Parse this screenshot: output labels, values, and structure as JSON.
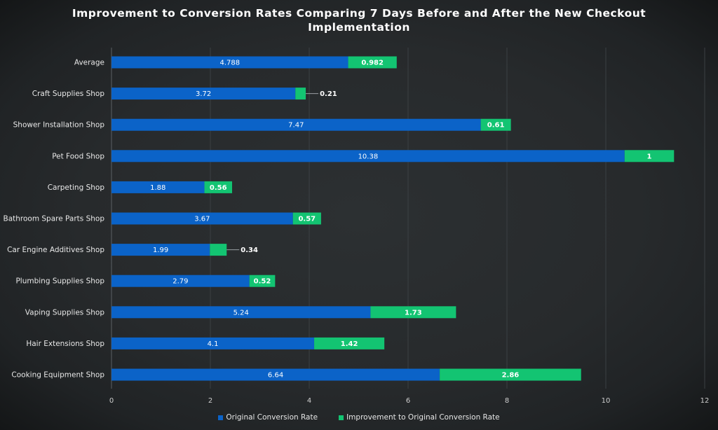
{
  "chart_data": {
    "type": "bar",
    "orientation": "horizontal",
    "stacked": true,
    "title": "Improvement to Conversion Rates Comparing 7 Days Before and After the New Checkout Implementation",
    "categories": [
      "Average",
      "Craft Supplies Shop",
      "Shower Installation Shop",
      "Pet Food Shop",
      "Carpeting Shop",
      "Bathroom Spare Parts Shop",
      "Car Engine Additives Shop",
      "Plumbing Supplies Shop",
      "Vaping Supplies Shop",
      "Hair Extensions Shop",
      "Cooking Equipment Shop"
    ],
    "series": [
      {
        "name": "Original Conversion Rate",
        "color": "#0b63c8",
        "values": [
          4.788,
          3.72,
          7.47,
          10.38,
          1.88,
          3.67,
          1.99,
          2.79,
          5.24,
          4.1,
          6.64
        ],
        "labels": [
          "4.788",
          "3.72",
          "7.47",
          "10.38",
          "1.88",
          "3.67",
          "1.99",
          "2.79",
          "5.24",
          "4.1",
          "6.64"
        ]
      },
      {
        "name": "Improvement to Original Conversion Rate",
        "color": "#13c472",
        "values": [
          0.982,
          0.21,
          0.61,
          1,
          0.56,
          0.57,
          0.34,
          0.52,
          1.73,
          1.42,
          2.86
        ],
        "labels": [
          "0.982",
          "0.21",
          "0.61",
          "1",
          "0.56",
          "0.57",
          "0.34",
          "0.52",
          "1.73",
          "1.42",
          "2.86"
        ]
      }
    ],
    "xlim": [
      0,
      12
    ],
    "xticks": [
      "0",
      "2",
      "4",
      "6",
      "8",
      "10",
      "12"
    ],
    "grid": true,
    "legend": "bottom-center"
  }
}
